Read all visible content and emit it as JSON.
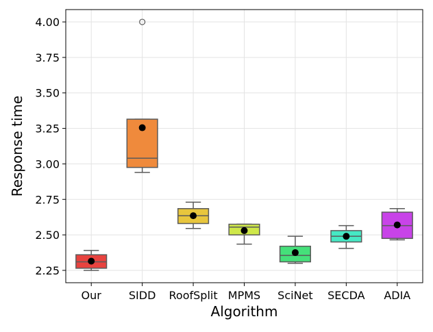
{
  "chart_data": {
    "type": "box",
    "title": "",
    "xlabel": "Algorithm",
    "ylabel": "Response time",
    "ylim": [
      2.163,
      4.087
    ],
    "yticks": [
      2.25,
      2.5,
      2.75,
      3.0,
      3.25,
      3.5,
      3.75,
      4.0
    ],
    "ytick_labels": [
      "2.25",
      "2.50",
      "2.75",
      "3.00",
      "3.25",
      "3.50",
      "3.75",
      "4.00"
    ],
    "grid": true,
    "legend": "none",
    "categories": [
      "Our",
      "SIDD",
      "RoofSplit",
      "MPMS",
      "SciNet",
      "SECDA",
      "ADIA"
    ],
    "boxes": [
      {
        "name": "Our",
        "color": "#e8433f",
        "whisker_low": 2.25,
        "q1": 2.265,
        "median": 2.31,
        "q3": 2.36,
        "whisker_high": 2.39,
        "mean": 2.315,
        "outliers": []
      },
      {
        "name": "SIDD",
        "color": "#ef8a3c",
        "whisker_low": 2.94,
        "q1": 2.975,
        "median": 3.04,
        "q3": 3.315,
        "whisker_high": 3.315,
        "mean": 3.255,
        "outliers": [
          4.0
        ]
      },
      {
        "name": "RoofSplit",
        "color": "#e8c63d",
        "whisker_low": 2.545,
        "q1": 2.58,
        "median": 2.635,
        "q3": 2.685,
        "whisker_high": 2.73,
        "mean": 2.635,
        "outliers": []
      },
      {
        "name": "MPMS",
        "color": "#cfe84a",
        "whisker_low": 2.435,
        "q1": 2.5,
        "median": 2.555,
        "q3": 2.575,
        "whisker_high": 2.575,
        "mean": 2.53,
        "outliers": []
      },
      {
        "name": "SciNet",
        "color": "#45e07a",
        "whisker_low": 2.3,
        "q1": 2.31,
        "median": 2.355,
        "q3": 2.42,
        "whisker_high": 2.49,
        "mean": 2.375,
        "outliers": []
      },
      {
        "name": "SECDA",
        "color": "#46e8c4",
        "whisker_low": 2.405,
        "q1": 2.45,
        "median": 2.49,
        "q3": 2.53,
        "whisker_high": 2.565,
        "mean": 2.49,
        "outliers": []
      },
      {
        "name": "ADIA",
        "color": "#c843e8",
        "whisker_low": 2.465,
        "q1": 2.475,
        "median": 2.565,
        "q3": 2.66,
        "whisker_high": 2.685,
        "mean": 2.57,
        "outliers": []
      }
    ]
  }
}
